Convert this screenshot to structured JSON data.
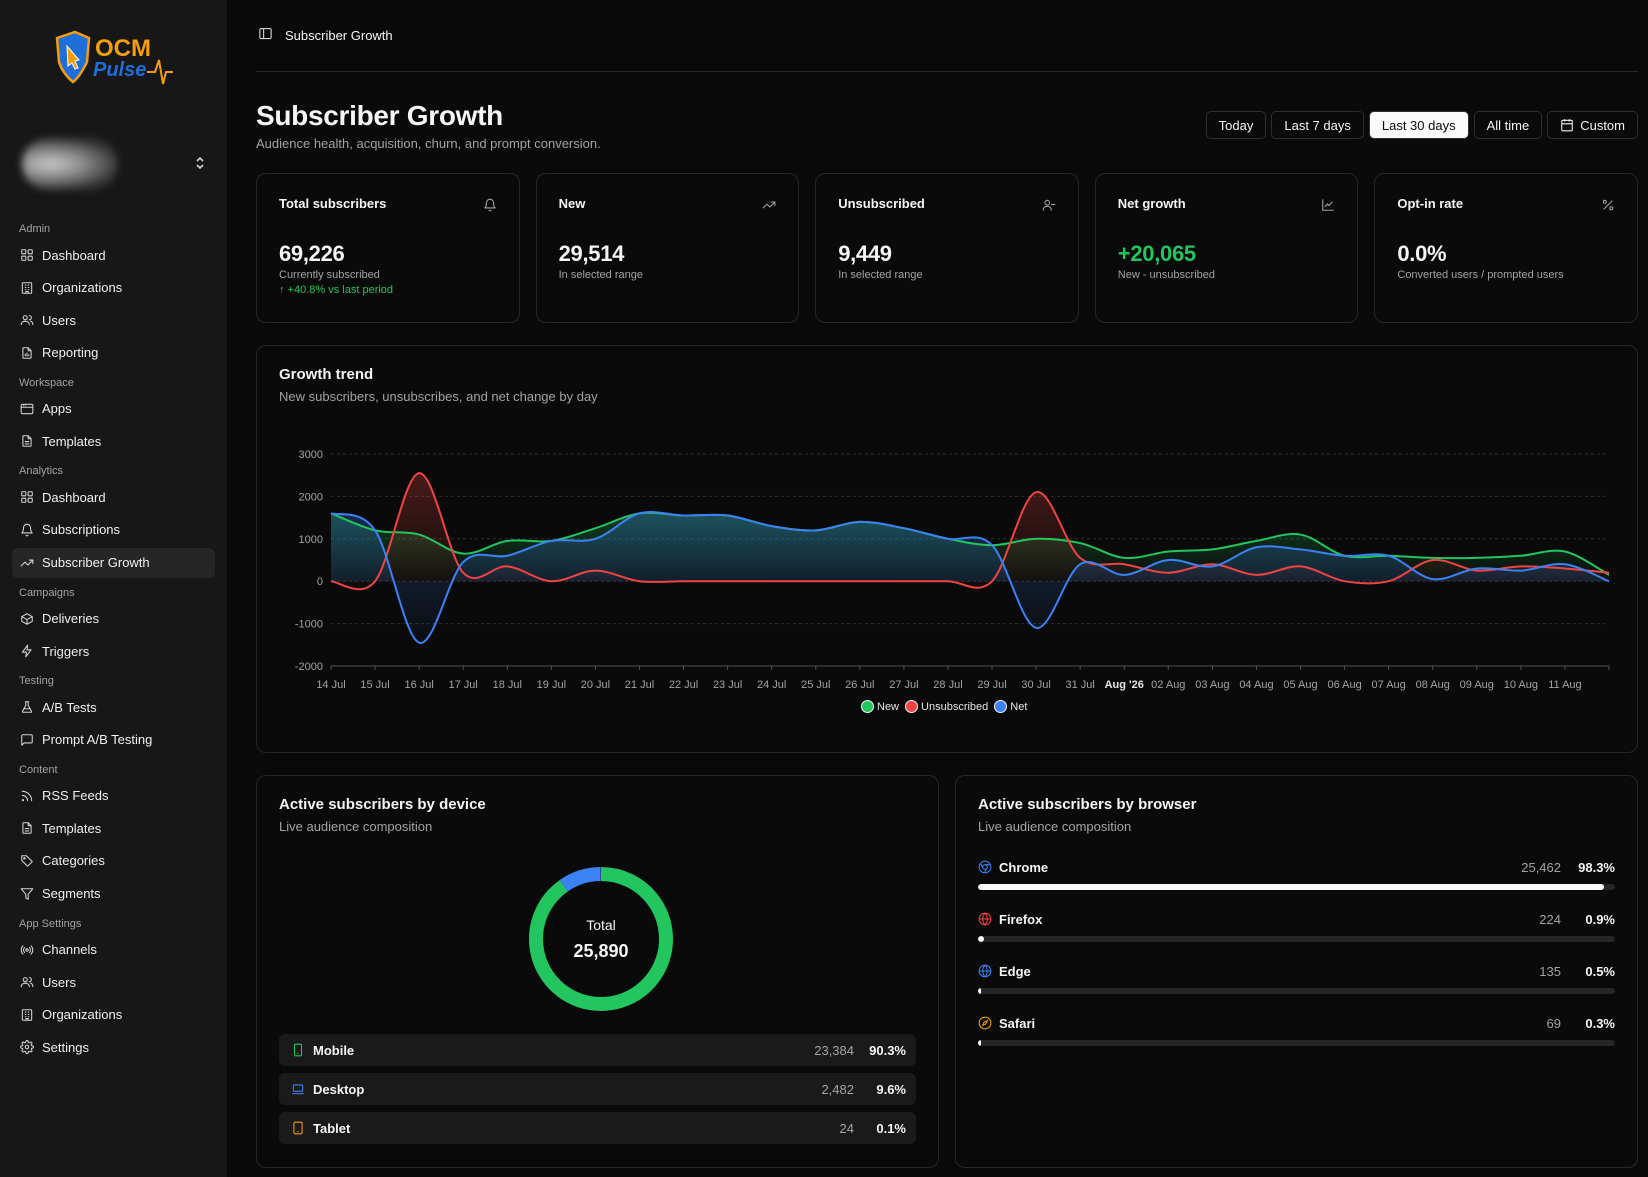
{
  "logo": {
    "line1": "OCM",
    "line2": "Pulse"
  },
  "sidebar": {
    "sections": [
      {
        "label": "Admin",
        "items": [
          {
            "label": "Dashboard",
            "icon": "grid-icon"
          },
          {
            "label": "Organizations",
            "icon": "building-icon"
          },
          {
            "label": "Users",
            "icon": "users-icon"
          },
          {
            "label": "Reporting",
            "icon": "file-chart-icon"
          }
        ]
      },
      {
        "label": "Workspace",
        "items": [
          {
            "label": "Apps",
            "icon": "app-window-icon"
          },
          {
            "label": "Templates",
            "icon": "file-icon"
          }
        ]
      },
      {
        "label": "Analytics",
        "items": [
          {
            "label": "Dashboard",
            "icon": "grid-icon"
          },
          {
            "label": "Subscriptions",
            "icon": "bell-icon"
          },
          {
            "label": "Subscriber Growth",
            "icon": "trending-up-icon",
            "active": true
          }
        ]
      },
      {
        "label": "Campaigns",
        "items": [
          {
            "label": "Deliveries",
            "icon": "package-icon"
          },
          {
            "label": "Triggers",
            "icon": "zap-icon"
          }
        ]
      },
      {
        "label": "Testing",
        "items": [
          {
            "label": "A/B Tests",
            "icon": "flask-icon"
          },
          {
            "label": "Prompt A/B Testing",
            "icon": "message-square-icon"
          }
        ]
      },
      {
        "label": "Content",
        "items": [
          {
            "label": "RSS Feeds",
            "icon": "rss-icon"
          },
          {
            "label": "Templates",
            "icon": "file-icon"
          },
          {
            "label": "Categories",
            "icon": "tags-icon"
          },
          {
            "label": "Segments",
            "icon": "filter-icon"
          }
        ]
      },
      {
        "label": "App Settings",
        "items": [
          {
            "label": "Channels",
            "icon": "radio-icon"
          },
          {
            "label": "Users",
            "icon": "users-icon"
          },
          {
            "label": "Organizations",
            "icon": "building-icon"
          },
          {
            "label": "Settings",
            "icon": "gear-icon"
          }
        ]
      }
    ]
  },
  "topbar": {
    "crumb": "Subscriber Growth"
  },
  "header": {
    "title": "Subscriber Growth",
    "subtitle": "Audience health, acquisition, churn, and prompt conversion.",
    "ranges": [
      {
        "label": "Today"
      },
      {
        "label": "Last 7 days"
      },
      {
        "label": "Last 30 days",
        "active": true
      },
      {
        "label": "All time"
      },
      {
        "label": "Custom",
        "icon": "calendar-icon"
      }
    ]
  },
  "kpis": [
    {
      "label": "Total subscribers",
      "icon": "bell-icon",
      "value": "69,226",
      "sub": "Currently subscribed",
      "delta": "↑ +40.8% vs last period"
    },
    {
      "label": "New",
      "icon": "trending-up-icon",
      "value": "29,514",
      "sub": "In selected range"
    },
    {
      "label": "Unsubscribed",
      "icon": "user-minus-icon",
      "value": "9,449",
      "sub": "In selected range"
    },
    {
      "label": "Net growth",
      "icon": "line-chart-icon",
      "value": "+20,065",
      "sub": "New - unsubscribed",
      "positive": true
    },
    {
      "label": "Opt-in rate",
      "icon": "percent-icon",
      "value": "0.0%",
      "sub": "Converted users / prompted users"
    }
  ],
  "trend": {
    "title": "Growth trend",
    "subtitle": "New subscribers, unsubscribes, and net change by day"
  },
  "chart_data": {
    "type": "line",
    "x": [
      "14 Jul",
      "15 Jul",
      "16 Jul",
      "17 Jul",
      "18 Jul",
      "19 Jul",
      "20 Jul",
      "21 Jul",
      "22 Jul",
      "23 Jul",
      "24 Jul",
      "25 Jul",
      "26 Jul",
      "27 Jul",
      "28 Jul",
      "29 Jul",
      "30 Jul",
      "31 Jul",
      "Aug '26",
      "02 Aug",
      "03 Aug",
      "04 Aug",
      "05 Aug",
      "06 Aug",
      "07 Aug",
      "08 Aug",
      "09 Aug",
      "10 Aug",
      "11 Aug",
      ""
    ],
    "yticks": [
      3000,
      2000,
      1000,
      0,
      -1000,
      -2000
    ],
    "ylim": [
      -2000,
      3000
    ],
    "series": [
      {
        "name": "New",
        "color": "#22c55e",
        "values": [
          1600,
          1200,
          1100,
          650,
          950,
          950,
          1250,
          1600,
          1550,
          1550,
          1300,
          1200,
          1400,
          1250,
          1000,
          850,
          1000,
          900,
          550,
          700,
          750,
          950,
          1100,
          600,
          600,
          550,
          550,
          600,
          700,
          150
        ]
      },
      {
        "name": "Unsubscribed",
        "color": "#ef4444",
        "values": [
          0,
          0,
          2550,
          200,
          350,
          0,
          250,
          0,
          0,
          0,
          0,
          0,
          0,
          0,
          0,
          0,
          2100,
          550,
          400,
          200,
          400,
          150,
          350,
          0,
          0,
          500,
          250,
          350,
          300,
          200
        ]
      },
      {
        "name": "Net",
        "color": "#3b82f6",
        "values": [
          1600,
          1200,
          -1450,
          450,
          600,
          950,
          1000,
          1600,
          1550,
          1550,
          1300,
          1200,
          1400,
          1250,
          1000,
          850,
          -1100,
          400,
          150,
          500,
          350,
          800,
          750,
          600,
          600,
          50,
          300,
          250,
          400,
          0
        ]
      }
    ],
    "legend": "bottom"
  },
  "device": {
    "title": "Active subscribers by device",
    "subtitle": "Live audience composition",
    "total_label": "Total",
    "total": "25,890",
    "rows": [
      {
        "name": "Mobile",
        "count": "23,384",
        "pct": "90.3%",
        "share": 90.3,
        "icon": "smartphone-icon",
        "color": "#22c55e"
      },
      {
        "name": "Desktop",
        "count": "2,482",
        "pct": "9.6%",
        "share": 9.6,
        "icon": "laptop-icon",
        "color": "#3b82f6"
      },
      {
        "name": "Tablet",
        "count": "24",
        "pct": "0.1%",
        "share": 0.1,
        "icon": "tablet-icon",
        "color": "#f59e0b"
      }
    ]
  },
  "browser": {
    "title": "Active subscribers by browser",
    "subtitle": "Live audience composition",
    "rows": [
      {
        "name": "Chrome",
        "count": "25,462",
        "pct": "98.3%",
        "share": 98.3,
        "icon": "chrome-icon",
        "color": "#3b82f6"
      },
      {
        "name": "Firefox",
        "count": "224",
        "pct": "0.9%",
        "share": 0.9,
        "icon": "firefox-icon",
        "color": "#ef4444"
      },
      {
        "name": "Edge",
        "count": "135",
        "pct": "0.5%",
        "share": 0.5,
        "icon": "edge-icon",
        "color": "#3b82f6"
      },
      {
        "name": "Safari",
        "count": "69",
        "pct": "0.3%",
        "share": 0.3,
        "icon": "safari-icon",
        "color": "#f59e0b"
      }
    ]
  }
}
